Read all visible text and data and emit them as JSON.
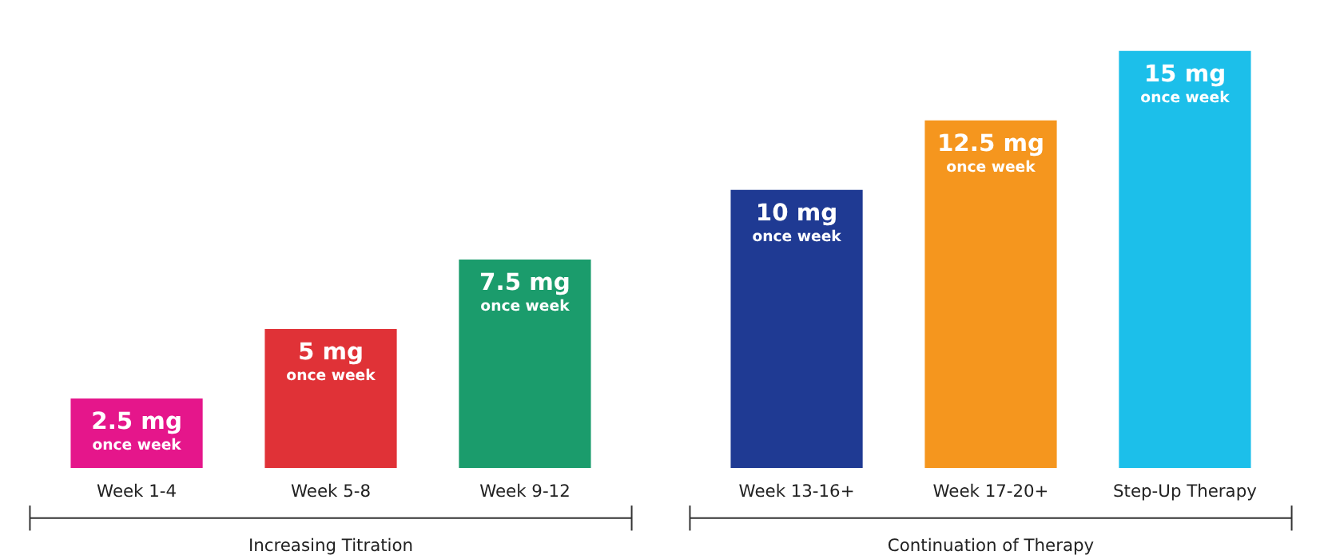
{
  "chart_data": [
    {
      "type": "bar",
      "categories": [
        "Week 1-4",
        "Week 5-8",
        "Week 9-12"
      ],
      "values": [
        2.5,
        5,
        7.5
      ],
      "colors": [
        "#e5168b",
        "#e03237",
        "#1b9c6c"
      ],
      "value_labels": [
        "2.5 mg\nonce week",
        "5 mg\nonce week",
        "7.5 mg\nonce week"
      ],
      "xlabel": "Increasing Titration"
    },
    {
      "type": "bar",
      "categories": [
        "Week 13-16+",
        "Week 17-20+",
        "Step-Up Therapy"
      ],
      "values": [
        10,
        12.5,
        15
      ],
      "colors": [
        "#1f3a93",
        "#f5961e",
        "#1cbfea"
      ],
      "value_labels": [
        "10 mg\nonce week",
        "12.5 mg\nonce week",
        "15 mg\nonce week"
      ],
      "xlabel": "Continuation of Therapy"
    }
  ]
}
